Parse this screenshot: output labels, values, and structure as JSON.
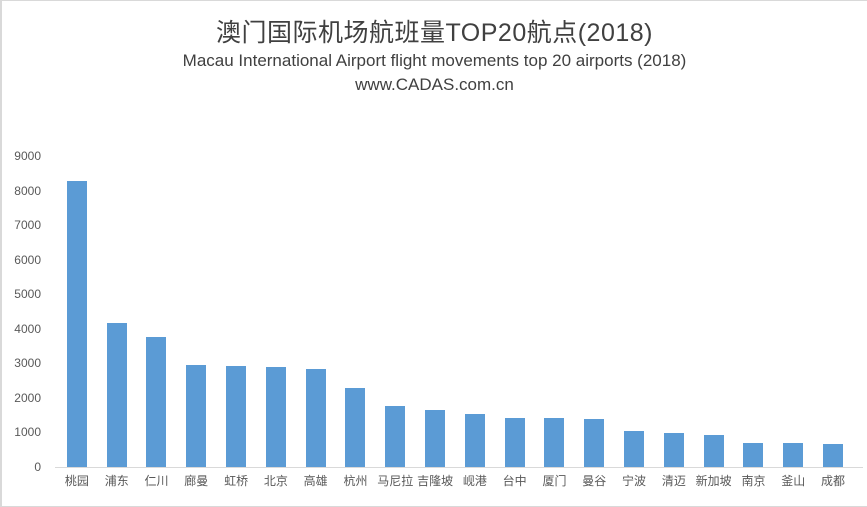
{
  "frame": {
    "background": "#ffffff",
    "border_color": "#d9d9d9"
  },
  "header": {
    "title": "澳门国际机场航班量TOP20航点(2018)",
    "subtitle": "Macau International Airport  flight movements top 20 airports (2018)",
    "source": "www.CADAS.com.cn"
  },
  "chart_data": {
    "type": "bar",
    "title": "澳门国际机场航班量TOP20航点(2018)",
    "subtitle": "Macau International Airport flight movements top 20 airports (2018)",
    "source": "www.CADAS.com.cn",
    "categories": [
      "桃园",
      "浦东",
      "仁川",
      "廊曼",
      "虹桥",
      "北京",
      "高雄",
      "杭州",
      "马尼拉",
      "吉隆坡",
      "岘港",
      "台中",
      "厦门",
      "曼谷",
      "宁波",
      "清迈",
      "新加坡",
      "南京",
      "釜山",
      "成都"
    ],
    "values": [
      8280,
      4160,
      3770,
      2960,
      2910,
      2880,
      2840,
      2300,
      1780,
      1660,
      1530,
      1430,
      1410,
      1400,
      1040,
      980,
      920,
      700,
      690,
      660
    ],
    "xlabel": "",
    "ylabel": "",
    "ylim": [
      0,
      9000
    ],
    "yticks": [
      0,
      1000,
      2000,
      3000,
      4000,
      5000,
      6000,
      7000,
      8000,
      9000
    ],
    "grid": false,
    "legend": false,
    "bar_color": "#5b9bd5",
    "axis_line_color": "#d9d9d9",
    "tick_label_color": "#595959",
    "title_color": "#404040"
  }
}
